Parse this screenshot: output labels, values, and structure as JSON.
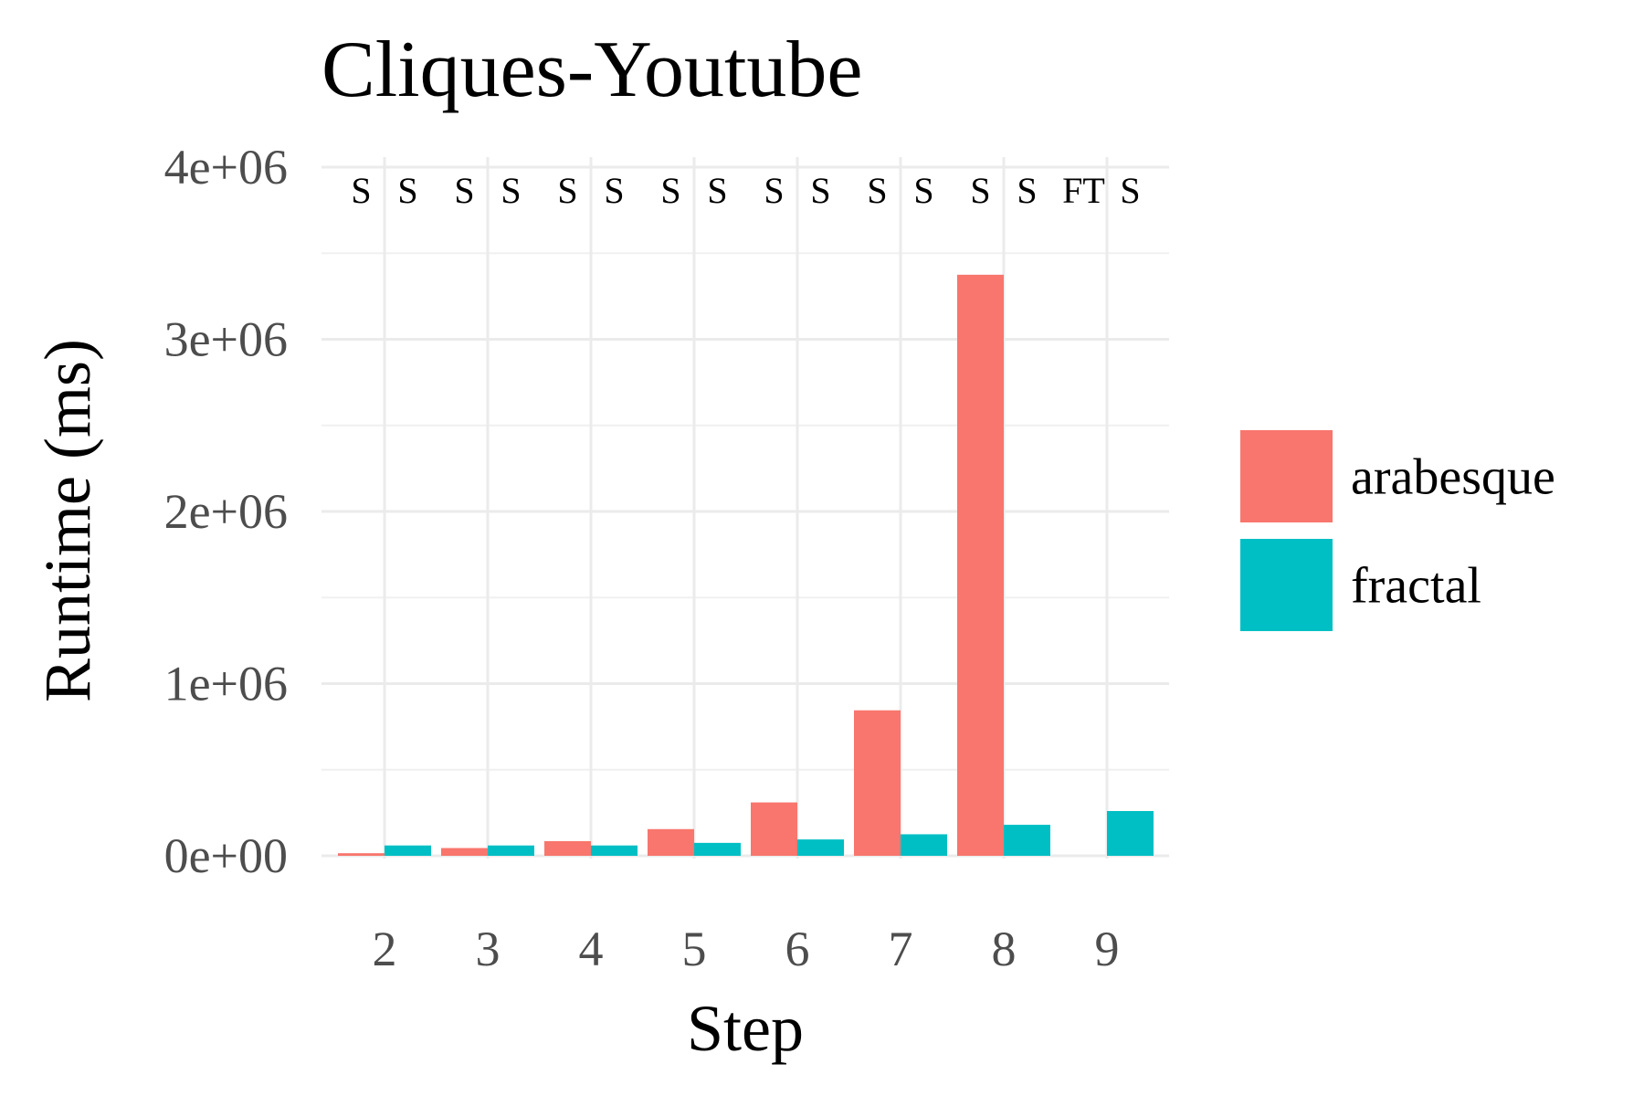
{
  "chart_data": {
    "type": "bar",
    "title": "Cliques-Youtube",
    "xlabel": "Step",
    "ylabel": "Runtime (ms)",
    "categories": [
      "2",
      "3",
      "4",
      "5",
      "6",
      "7",
      "8",
      "9"
    ],
    "series": [
      {
        "name": "arabesque",
        "color": "#F8766D",
        "values": [
          15000,
          45000,
          85000,
          155000,
          310000,
          845000,
          3375000,
          null
        ],
        "status": [
          "S",
          "S",
          "S",
          "S",
          "S",
          "S",
          "S",
          "FT"
        ]
      },
      {
        "name": "fractal",
        "color": "#00BFC4",
        "values": [
          60000,
          60000,
          60000,
          75000,
          95000,
          125000,
          180000,
          260000
        ],
        "status": [
          "S",
          "S",
          "S",
          "S",
          "S",
          "S",
          "S",
          "S"
        ]
      }
    ],
    "ylim": [
      0,
      4000000
    ],
    "yticks": [
      0,
      1000000,
      2000000,
      3000000,
      4000000
    ],
    "ytick_labels": [
      "0e+00",
      "1e+06",
      "2e+06",
      "3e+06",
      "4e+06"
    ],
    "grid": true,
    "legend_position": "right"
  }
}
